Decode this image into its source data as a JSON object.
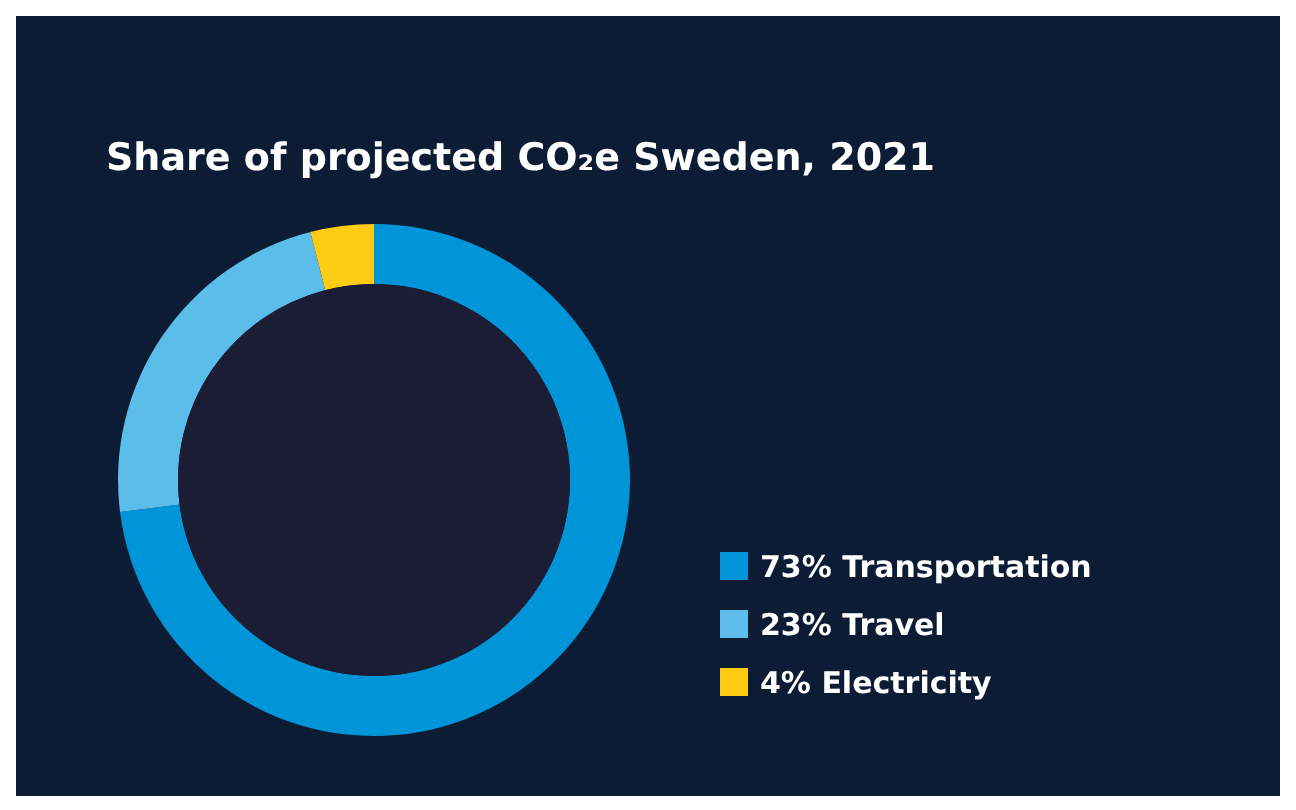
{
  "chart_data": {
    "type": "donut",
    "title": "Share of projected CO₂e Sweden, 2021",
    "categories": [
      "Transportation",
      "Travel",
      "Electricity"
    ],
    "values": [
      73,
      23,
      4
    ],
    "value_labels": [
      "73%",
      "23%",
      "4%"
    ],
    "colors": [
      "#0095d8",
      "#5bbdea",
      "#ffcc14"
    ],
    "legend": "right"
  }
}
